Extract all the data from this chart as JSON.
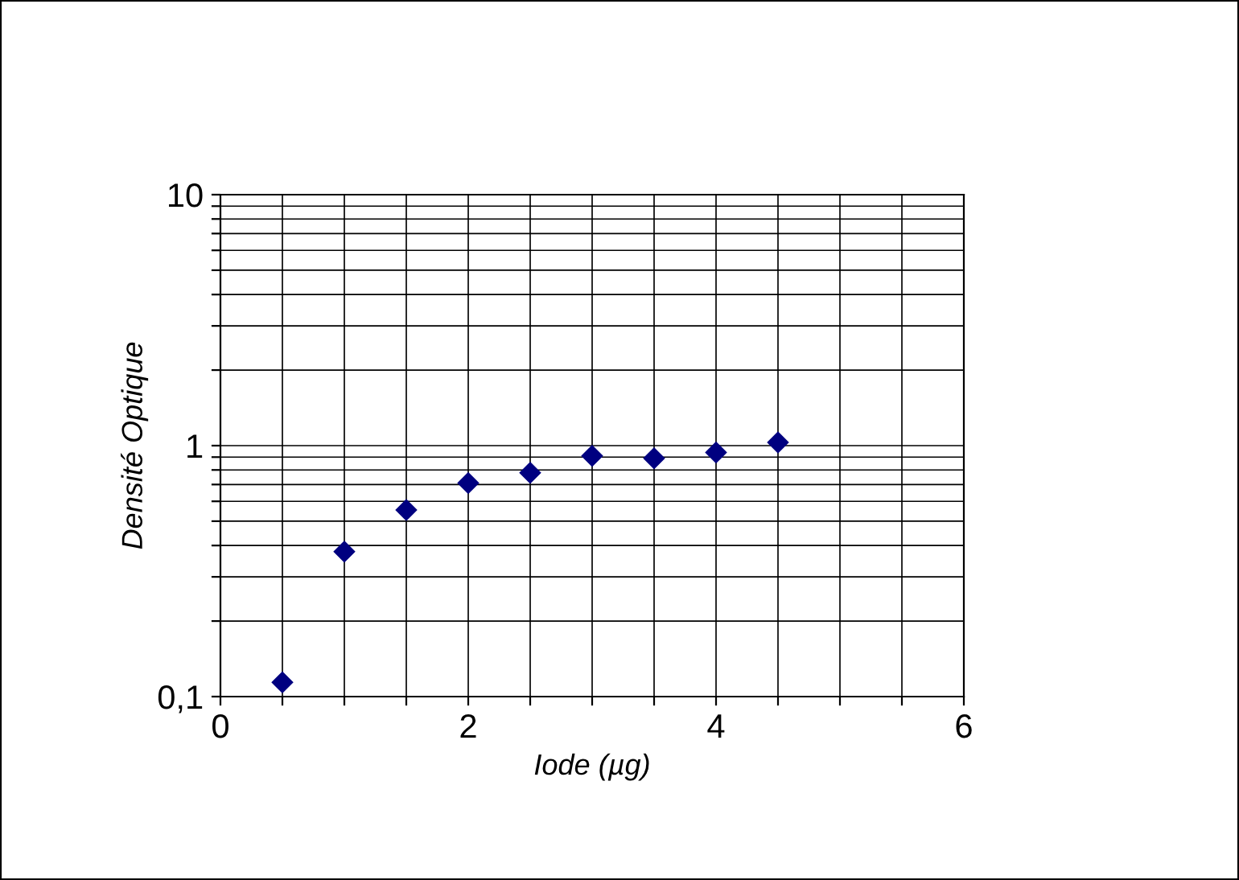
{
  "chart_data": {
    "type": "scatter",
    "xlabel": "Iode (µg)",
    "ylabel": "Densité Optique",
    "x": [
      0.5,
      1,
      1.5,
      2,
      2.5,
      3,
      3.5,
      4,
      4.5
    ],
    "series": [
      {
        "color": "#000080",
        "values": [
          0.114,
          0.378,
          0.554,
          0.71,
          0.78,
          0.91,
          0.89,
          0.94,
          1.03
        ]
      }
    ],
    "log": "y",
    "marker": "diamond",
    "grid": true,
    "legend": false,
    "xlim": [
      0,
      6
    ],
    "xticks": [
      0,
      {
        "value": 0.5,
        "label": null
      },
      {
        "value": 1,
        "label": null
      },
      {
        "value": 1.5,
        "label": null
      },
      2,
      {
        "value": 2.5,
        "label": null
      },
      {
        "value": 3,
        "label": null
      },
      {
        "value": 3.5,
        "label": null
      },
      4,
      {
        "value": 4.5,
        "label": null
      },
      {
        "value": 5,
        "label": null
      },
      {
        "value": 5.5,
        "label": null
      },
      6
    ],
    "ylim": [
      0.1,
      10
    ],
    "yticks": [
      {
        "value": 0.1,
        "label": "0,1"
      },
      {
        "value": 0.2,
        "label": null
      },
      {
        "value": 0.3,
        "label": null
      },
      {
        "value": 0.4,
        "label": null
      },
      {
        "value": 0.5,
        "label": null
      },
      {
        "value": 0.6,
        "label": null
      },
      {
        "value": 0.7,
        "label": null
      },
      {
        "value": 0.8,
        "label": null
      },
      {
        "value": 0.9,
        "label": null
      },
      1,
      {
        "value": 2,
        "label": null
      },
      {
        "value": 3,
        "label": null
      },
      {
        "value": 4,
        "label": null
      },
      {
        "value": 5,
        "label": null
      },
      {
        "value": 6,
        "label": null
      },
      {
        "value": 7,
        "label": null
      },
      {
        "value": 8,
        "label": null
      },
      {
        "value": 9,
        "label": null
      },
      10
    ]
  }
}
